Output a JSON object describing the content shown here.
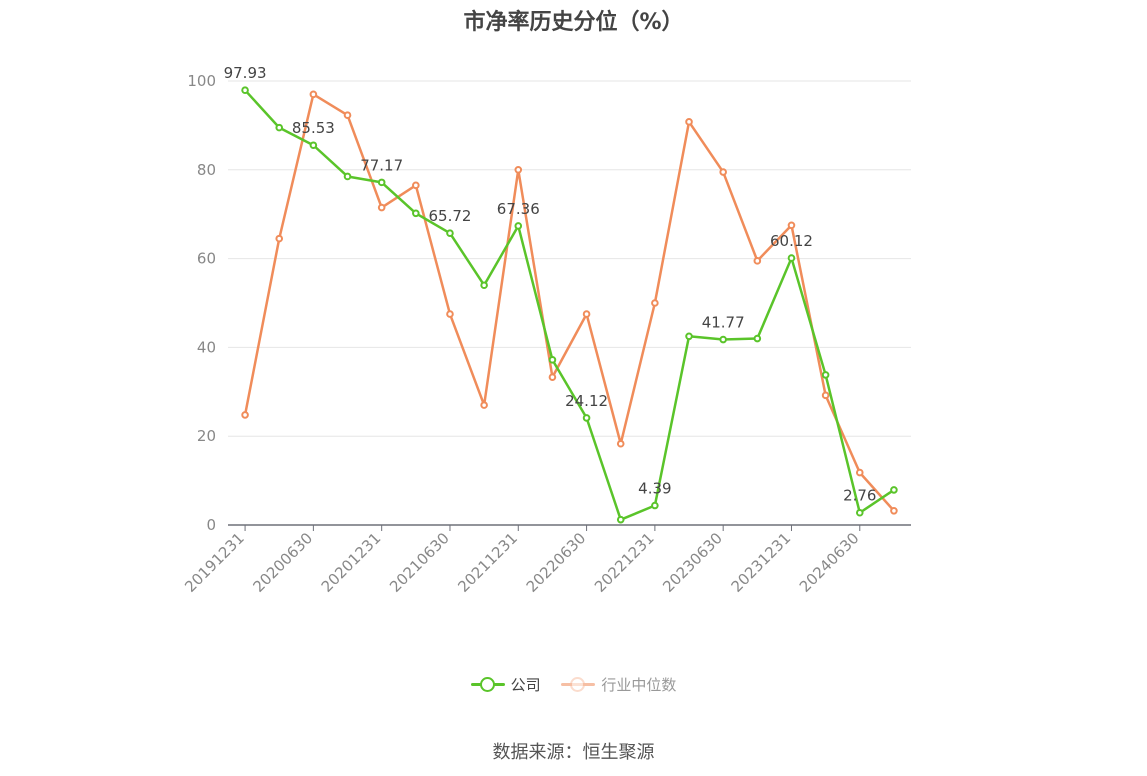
{
  "chart_data": {
    "type": "line",
    "title": "市净率历史分位（%）",
    "xlabel": "",
    "ylabel": "",
    "ylim": [
      0,
      100
    ],
    "yticks": [
      0,
      20,
      40,
      60,
      80,
      100
    ],
    "x": [
      "20191231",
      "20200331",
      "20200630",
      "20200930",
      "20201231",
      "20210331",
      "20210630",
      "20210930",
      "20211231",
      "20220331",
      "20220630",
      "20220930",
      "20221231",
      "20230331",
      "20230630",
      "20230930",
      "20231231",
      "20240331",
      "20240630",
      "20240930"
    ],
    "x_tick_labels": [
      "20191231",
      "20200630",
      "20201231",
      "20210630",
      "20211231",
      "20220630",
      "20221231",
      "20230630",
      "20231231",
      "20240630"
    ],
    "grid": true,
    "legend_position": "bottom",
    "series": [
      {
        "name": "公司",
        "color": "#5ac42a",
        "values": [
          97.93,
          89.5,
          85.53,
          78.5,
          77.17,
          70.2,
          65.72,
          54.0,
          67.36,
          37.2,
          24.12,
          1.2,
          4.39,
          42.5,
          41.77,
          42.0,
          60.12,
          33.8,
          2.76,
          7.9
        ],
        "data_labels": [
          "97.93",
          "",
          "85.53",
          "",
          "77.17",
          "",
          "65.72",
          "",
          "67.36",
          "",
          "24.12",
          "",
          "4.39",
          "",
          "41.77",
          "",
          "60.12",
          "",
          "2.76",
          ""
        ]
      },
      {
        "name": "行业中位数",
        "color": "#f08c5a",
        "values": [
          24.8,
          64.5,
          97.0,
          92.3,
          71.5,
          76.5,
          47.5,
          27.0,
          80.0,
          33.3,
          47.5,
          18.3,
          50.0,
          90.8,
          79.5,
          59.5,
          67.5,
          29.2,
          11.8,
          3.2
        ]
      }
    ]
  },
  "source": "数据来源：恒生聚源"
}
